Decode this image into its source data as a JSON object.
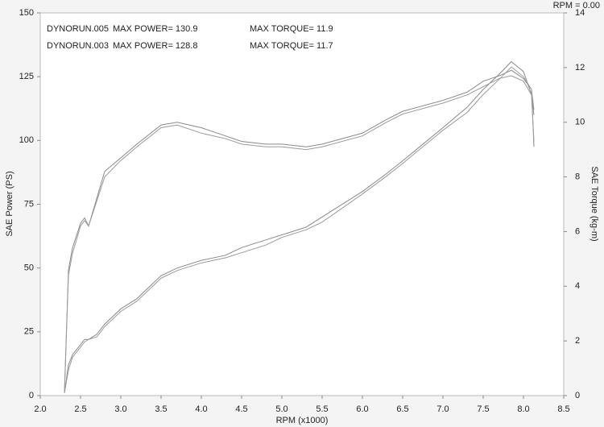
{
  "chart_data": {
    "type": "dyno",
    "status": "RPM = 0.00",
    "xlabel": "RPM (x1000)",
    "ylabel": "SAE Power (PS)",
    "y2label": "SAE Torque (kg-m)",
    "xlim": [
      2,
      8.5
    ],
    "xticks": [
      {
        "value": 2,
        "label": "2.0"
      },
      2.5,
      {
        "value": 3,
        "label": "3.0"
      },
      3.5,
      {
        "value": 4,
        "label": "4.0"
      },
      4.5,
      {
        "value": 5,
        "label": "5.0"
      },
      5.5,
      {
        "value": 6,
        "label": "6.0"
      },
      6.5,
      {
        "value": 7,
        "label": "7.0"
      },
      7.5,
      {
        "value": 8,
        "label": "8.0"
      },
      8.5
    ],
    "ylim": [
      0,
      150
    ],
    "yticks": [
      0,
      25,
      50,
      75,
      100,
      125,
      150
    ],
    "y2lim": [
      0,
      14
    ],
    "y2ticks": [
      0,
      2,
      4,
      6,
      8,
      10,
      12,
      14
    ],
    "grid": false,
    "x": [
      2.3,
      2.35,
      2.4,
      2.5,
      2.55,
      2.6,
      2.7,
      2.8,
      3.0,
      3.2,
      3.5,
      3.7,
      4.0,
      4.3,
      4.5,
      4.8,
      5.0,
      5.3,
      5.5,
      6.0,
      6.3,
      6.5,
      7.0,
      7.3,
      7.5,
      7.7,
      7.85,
      8.0,
      8.1,
      8.13
    ],
    "series": [
      {
        "name": "DYNORUN.005",
        "color": "#8a8a8a",
        "max_power_label": "MAX POWER= 130.9",
        "max_torque_label": "MAX TORQUE= 11.9",
        "values": [
          1,
          12,
          16,
          20,
          22,
          22,
          24,
          28,
          34,
          38,
          47,
          50,
          53,
          55,
          58,
          61,
          63,
          66,
          70,
          80,
          87,
          92,
          105,
          113,
          120,
          126,
          130.9,
          127,
          118,
          110
        ],
        "y2_values": [
          0.1,
          4.6,
          5.4,
          6.3,
          6.5,
          6.2,
          7.2,
          8.2,
          8.7,
          9.2,
          9.9,
          10.0,
          9.8,
          9.5,
          9.3,
          9.2,
          9.2,
          9.1,
          9.2,
          9.6,
          10.1,
          10.4,
          10.8,
          11.1,
          11.5,
          11.7,
          11.9,
          11.6,
          11.2,
          9.1
        ]
      },
      {
        "name": "DYNORUN.003",
        "color": "#9a9a9a",
        "max_power_label": "MAX POWER= 128.8",
        "max_torque_label": "MAX TORQUE= 11.7",
        "values": [
          1,
          10,
          15,
          19,
          21,
          22,
          23,
          27,
          33,
          37,
          46,
          49,
          52,
          54,
          56,
          59,
          62,
          65,
          68,
          79,
          86,
          91,
          104,
          111,
          118,
          124,
          128.8,
          125,
          120,
          112
        ],
        "y2_values": [
          0.1,
          4.4,
          5.2,
          6.2,
          6.4,
          6.2,
          7.1,
          8.0,
          8.6,
          9.1,
          9.8,
          9.9,
          9.6,
          9.4,
          9.2,
          9.1,
          9.1,
          9.0,
          9.1,
          9.5,
          10.0,
          10.3,
          10.7,
          11.0,
          11.3,
          11.6,
          11.7,
          11.5,
          11.0,
          9.3
        ]
      }
    ]
  }
}
